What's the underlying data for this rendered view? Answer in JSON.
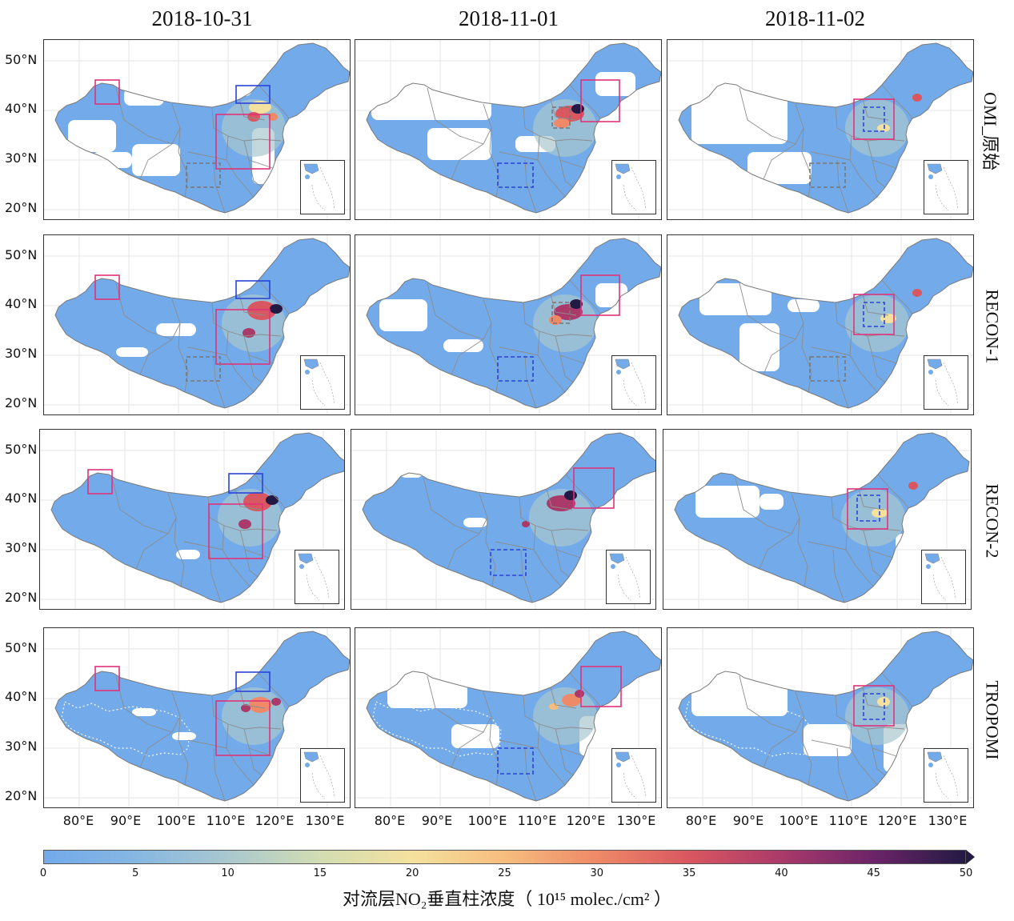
{
  "columns": [
    "2018-10-31",
    "2018-11-01",
    "2018-11-02"
  ],
  "rows": [
    "OMI_原始",
    "RECON-1",
    "RECON-2",
    "TROPOMI"
  ],
  "lat_ticks": [
    "50°N",
    "40°N",
    "30°N",
    "20°N"
  ],
  "lon_ticks": [
    "80°E",
    "90°E",
    "100°E",
    "110°E",
    "120°E",
    "130°E"
  ],
  "colorbar": {
    "ticks": [
      "0",
      "5",
      "10",
      "15",
      "20",
      "25",
      "30",
      "35",
      "40",
      "45",
      "50"
    ],
    "label": "对流层NO₂垂直柱浓度（ 10¹⁵ molec./cm² ）",
    "range": [
      0,
      50
    ],
    "colors": [
      "#72aaea",
      "#86b7e2",
      "#a9c8cf",
      "#d2ddb2",
      "#f4e19e",
      "#f6bd7e",
      "#ee8a68",
      "#d95760",
      "#aa3a6a",
      "#6c2468",
      "#231a44"
    ]
  },
  "colors": {
    "region_box_pink": "#e0327a",
    "region_box_blue": "#2a43d8",
    "region_box_gray": "#777777",
    "land_no_data": "#ffffff",
    "province_border": "#8c8c8c"
  }
}
